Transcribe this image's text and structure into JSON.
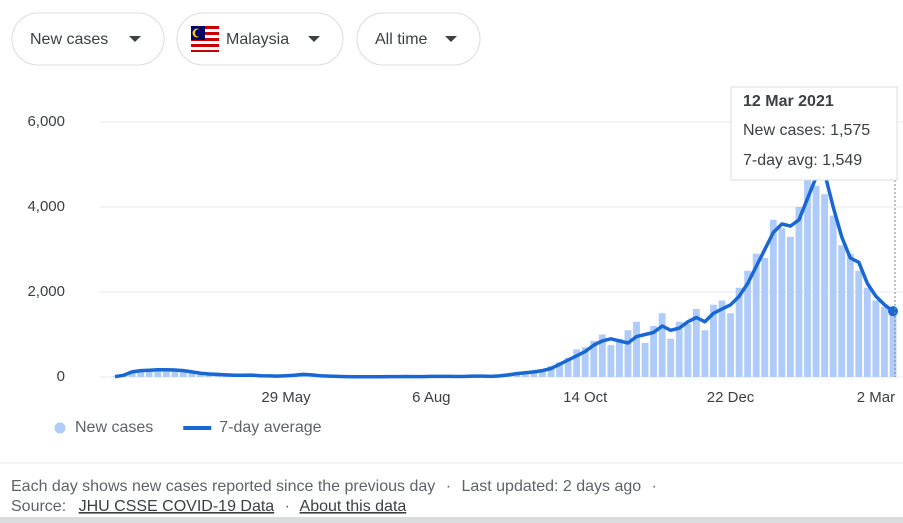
{
  "filters": [
    "New cases",
    "Malaysia",
    "All time"
  ],
  "chart_data": {
    "type": "bar",
    "categories": [
      null,
      null,
      null,
      null,
      null,
      null,
      null,
      null,
      null,
      null,
      null,
      null,
      null,
      null,
      null,
      null,
      null,
      null,
      null,
      null,
      "29 May",
      null,
      null,
      null,
      null,
      null,
      null,
      null,
      null,
      null,
      null,
      null,
      null,
      null,
      null,
      null,
      null,
      "6 Aug",
      null,
      null,
      null,
      null,
      null,
      null,
      null,
      null,
      null,
      null,
      null,
      null,
      null,
      null,
      null,
      null,
      null,
      "14 Oct",
      null,
      null,
      null,
      null,
      null,
      null,
      null,
      null,
      null,
      null,
      null,
      null,
      null,
      null,
      null,
      null,
      "22 Dec",
      null,
      null,
      null,
      null,
      null,
      null,
      null,
      null,
      null,
      null,
      null,
      null,
      null,
      null,
      null,
      null,
      "2 Mar",
      null,
      null
    ],
    "series": [
      {
        "name": "New cases",
        "type": "bar",
        "color": "#aecbfa",
        "values": [
          15,
          60,
          150,
          170,
          140,
          190,
          180,
          150,
          170,
          110,
          80,
          80,
          55,
          45,
          35,
          50,
          40,
          25,
          30,
          15,
          35,
          60,
          70,
          40,
          25,
          20,
          10,
          12,
          5,
          8,
          10,
          6,
          12,
          9,
          15,
          8,
          12,
          18,
          12,
          20,
          10,
          14,
          25,
          18,
          20,
          30,
          60,
          90,
          110,
          150,
          130,
          260,
          350,
          450,
          650,
          700,
          850,
          1000,
          750,
          900,
          1100,
          1300,
          800,
          1200,
          1500,
          900,
          1300,
          1250,
          1600,
          1100,
          1700,
          1800,
          1500,
          2100,
          2500,
          2900,
          2800,
          3700,
          3500,
          3300,
          4000,
          5000,
          4500,
          4300,
          3800,
          3100,
          2900,
          2500,
          2100,
          1800,
          1650,
          1575
        ]
      },
      {
        "name": "7-day average",
        "type": "line",
        "color": "#1967d2",
        "values": [
          10,
          40,
          120,
          150,
          160,
          170,
          170,
          165,
          150,
          120,
          90,
          70,
          60,
          50,
          40,
          40,
          45,
          30,
          25,
          20,
          30,
          40,
          60,
          50,
          30,
          20,
          15,
          10,
          8,
          8,
          8,
          8,
          10,
          10,
          12,
          10,
          10,
          15,
          15,
          15,
          12,
          15,
          20,
          20,
          15,
          25,
          50,
          80,
          100,
          120,
          150,
          200,
          300,
          400,
          500,
          600,
          750,
          850,
          900,
          850,
          800,
          950,
          1000,
          1050,
          1200,
          1100,
          1150,
          1300,
          1400,
          1300,
          1500,
          1600,
          1700,
          1900,
          2200,
          2600,
          3000,
          3400,
          3600,
          3550,
          3700,
          4200,
          4700,
          4800,
          4000,
          3300,
          2800,
          2700,
          2200,
          1900,
          1700,
          1549
        ]
      }
    ],
    "ylim": [
      0,
      6000
    ],
    "yticks": [
      0,
      {
        "value": 2000,
        "label": "2,000"
      },
      {
        "value": 4000,
        "label": "4,000"
      },
      {
        "value": 6000,
        "label": "6,000"
      }
    ],
    "grid": true
  },
  "tooltip": {
    "date": "12 Mar 2021",
    "new_cases": "New cases: 1,575",
    "avg": "7-day avg: 1,549"
  },
  "footer": {
    "note": "Each day shows new cases reported since the previous day",
    "separator": "·",
    "updated": "Last updated: 2 days ago",
    "source_label": "Source:",
    "source_link": "JHU CSSE COVID-19 Data",
    "about": "About this data"
  }
}
